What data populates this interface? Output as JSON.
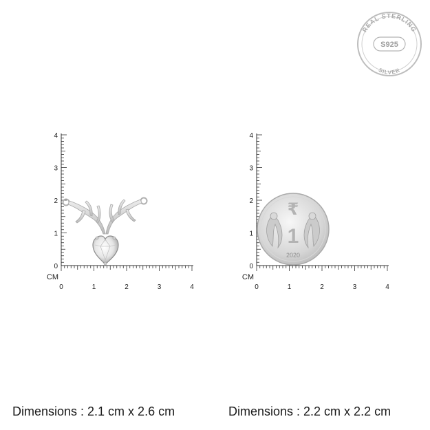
{
  "seal": {
    "top_text": "REAL STERLING",
    "center_text": "S925",
    "bottom_text": "SILVER"
  },
  "rulers": [
    {
      "unit_label": "CM",
      "x_ticks": [
        "0",
        "1",
        "2",
        "3",
        "4"
      ],
      "y_ticks": [
        "0",
        "1",
        "2",
        "3",
        "4"
      ]
    },
    {
      "unit_label": "CM",
      "x_ticks": [
        "0",
        "1",
        "2",
        "3",
        "4"
      ],
      "y_ticks": [
        "0",
        "1",
        "2",
        "3",
        "4"
      ]
    }
  ],
  "coin": {
    "denomination": "1",
    "year": "2020",
    "symbol": "₹"
  },
  "dimensions": {
    "pendant": "Dimensions : 2.1 cm x 2.6 cm",
    "coin": "Dimensions : 2.2 cm x 2.2 cm"
  },
  "colors": {
    "silver": "#c9c9c9",
    "silver_dark": "#9a9a9a",
    "ruler": "#333333"
  }
}
